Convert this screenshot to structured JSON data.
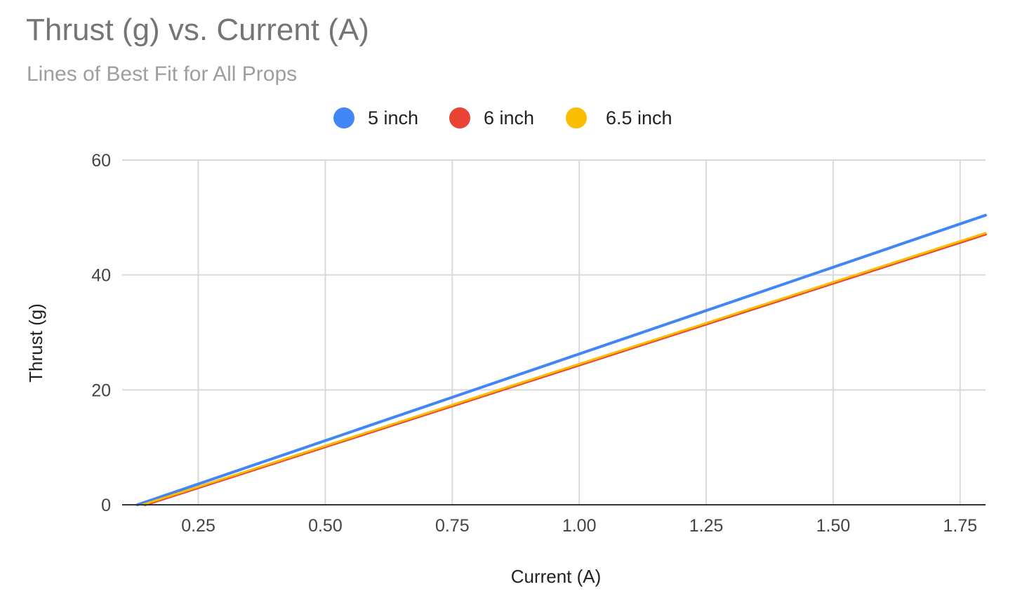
{
  "chart_data": {
    "type": "line",
    "title": "Thrust (g) vs. Current (A)",
    "subtitle": "Lines of Best Fit for All Props",
    "xlabel": "Current (A)",
    "ylabel": "Thrust (g)",
    "xlim": [
      0.1,
      1.8
    ],
    "ylim": [
      0,
      60
    ],
    "x_ticks": [
      "0.25",
      "0.50",
      "0.75",
      "1.00",
      "1.25",
      "1.50",
      "1.75"
    ],
    "y_ticks": [
      "0",
      "20",
      "40",
      "60"
    ],
    "grid": true,
    "legend_position": "top",
    "series": [
      {
        "name": "5 inch",
        "color": "#4285F4",
        "x": [
          0.13,
          1.8
        ],
        "y": [
          0,
          50.4
        ]
      },
      {
        "name": "6 inch",
        "color": "#EA4335",
        "x": [
          0.145,
          1.8
        ],
        "y": [
          0,
          47.1
        ]
      },
      {
        "name": "6.5 inch",
        "color": "#FBBC04",
        "x": [
          0.14,
          1.8
        ],
        "y": [
          0,
          47.3
        ]
      }
    ]
  }
}
